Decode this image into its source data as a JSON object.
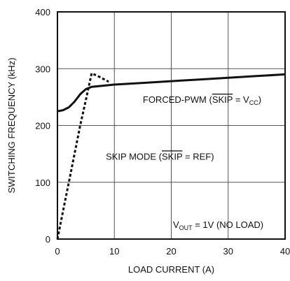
{
  "chart_data": {
    "type": "line",
    "title": "",
    "xlabel": "LOAD CURRENT (A)",
    "ylabel": "SWITCHING FREQUENCY (kHz)",
    "xlim": [
      0,
      40
    ],
    "ylim": [
      0,
      400
    ],
    "x_ticks": [
      0,
      10,
      20,
      30,
      40
    ],
    "y_ticks": [
      0,
      100,
      200,
      300,
      400
    ],
    "grid": true,
    "series": [
      {
        "name": "FORCED-PWM",
        "style": "solid",
        "color": "#111111",
        "points": [
          [
            0,
            225
          ],
          [
            1,
            227
          ],
          [
            2,
            232
          ],
          [
            3,
            242
          ],
          [
            4,
            255
          ],
          [
            5,
            264
          ],
          [
            6,
            268
          ],
          [
            8,
            270
          ],
          [
            10,
            272
          ],
          [
            15,
            275
          ],
          [
            20,
            278
          ],
          [
            25,
            281
          ],
          [
            30,
            284
          ],
          [
            35,
            287
          ],
          [
            40,
            290
          ]
        ]
      },
      {
        "name": "SKIP MODE",
        "style": "dashed",
        "color": "#111111",
        "points": [
          [
            0,
            0
          ],
          [
            1,
            50
          ],
          [
            2,
            100
          ],
          [
            3,
            150
          ],
          [
            4,
            200
          ],
          [
            5,
            245
          ],
          [
            6,
            292
          ],
          [
            7.5,
            285
          ],
          [
            9,
            277
          ]
        ]
      }
    ],
    "annotations": {
      "forced_pwm": {
        "prefix": "FORCED-PWM (",
        "overbar": "SKIP",
        "middle": " = V",
        "subscript": "CC",
        "suffix": ")"
      },
      "skip_mode": {
        "prefix": "SKIP MODE (",
        "overbar": "SKIP",
        "suffix": " = REF)"
      },
      "vout": {
        "main": "V",
        "subscript": "OUT",
        "suffix": " = 1V (NO LOAD)"
      }
    }
  }
}
